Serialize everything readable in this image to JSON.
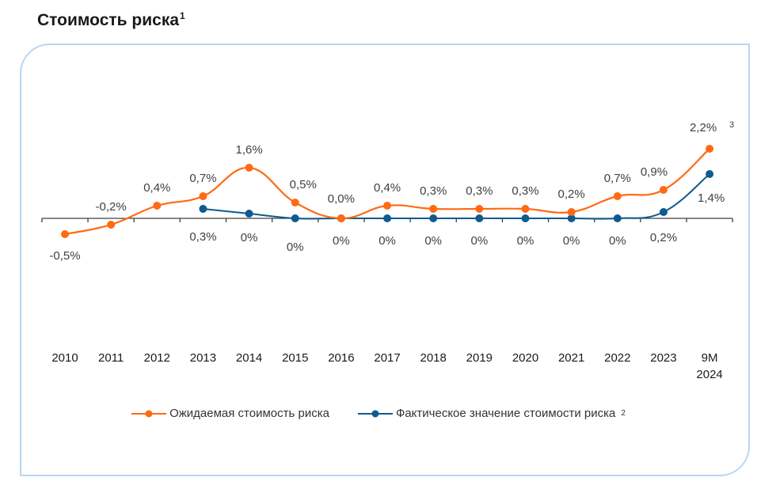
{
  "title": "Стоимость риска",
  "title_footnote": "1",
  "chart_data": {
    "type": "line",
    "title": "Стоимость риска",
    "xlabel": "",
    "ylabel": "",
    "categories": [
      "2010",
      "2011",
      "2012",
      "2013",
      "2014",
      "2015",
      "2016",
      "2017",
      "2018",
      "2019",
      "2020",
      "2021",
      "2022",
      "2023",
      "9M 2024"
    ],
    "ylim": [
      -0.6,
      2.4
    ],
    "grid": false,
    "legend_position": "bottom",
    "series": [
      {
        "name": "Ожидаемая стоимость риска",
        "color": "#ff6a13",
        "values": [
          -0.5,
          -0.2,
          0.4,
          0.7,
          1.6,
          0.5,
          0.0,
          0.4,
          0.3,
          0.3,
          0.3,
          0.2,
          0.7,
          0.9,
          2.2
        ],
        "labels": [
          "-0,5%",
          "-0,2%",
          "0,4%",
          "0,7%",
          "1,6%",
          "0,5%",
          "0,0%",
          "0,4%",
          "0,3%",
          "0,3%",
          "0,3%",
          "0,2%",
          "0,7%",
          "0,9%",
          "2,2%"
        ],
        "footnote_last": "3"
      },
      {
        "name": "Фактическое значение стоимости риска",
        "footnote": "2",
        "color": "#0f5a8f",
        "values": [
          null,
          null,
          null,
          0.3,
          0.15,
          0.0,
          0.0,
          0.0,
          0.0,
          0.0,
          0.0,
          0.0,
          0.0,
          0.2,
          1.4
        ],
        "labels": [
          null,
          null,
          null,
          "0,3%",
          "0%",
          "0%",
          "0%",
          "0%",
          "0%",
          "0%",
          "0%",
          "0%",
          "0%",
          "0,2%",
          "1,4%"
        ]
      }
    ]
  }
}
